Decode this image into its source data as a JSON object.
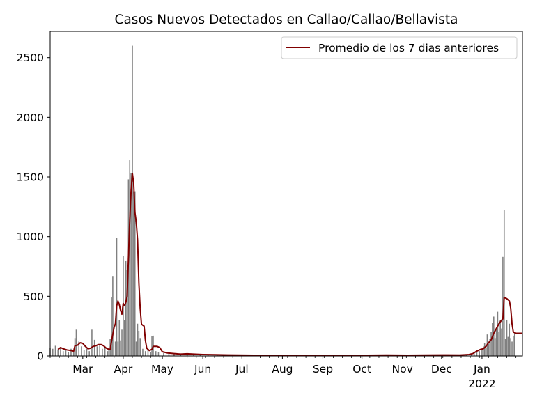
{
  "chart_data": {
    "type": "bar",
    "title": "Casos Nuevos Detectados en Callao/Callao/Bellavista",
    "xlabel": "",
    "ylabel": "",
    "ylim": [
      0,
      2720
    ],
    "yticks": [
      0,
      500,
      1000,
      1500,
      2000,
      2500
    ],
    "x_start": "2021-02-04",
    "x_end": "2022-02-01",
    "xtick_labels": [
      {
        "date": "2021-03-01",
        "label": "Mar"
      },
      {
        "date": "2021-04-01",
        "label": "Apr"
      },
      {
        "date": "2021-05-01",
        "label": "May"
      },
      {
        "date": "2021-06-01",
        "label": "Jun"
      },
      {
        "date": "2021-07-01",
        "label": "Jul"
      },
      {
        "date": "2021-08-01",
        "label": "Aug"
      },
      {
        "date": "2021-09-01",
        "label": "Sep"
      },
      {
        "date": "2021-10-01",
        "label": "Oct"
      },
      {
        "date": "2021-11-01",
        "label": "Nov"
      },
      {
        "date": "2021-12-01",
        "label": "Dec"
      },
      {
        "date": "2022-01-01",
        "label": "Jan",
        "sublabel": "2022"
      }
    ],
    "bar_color": "#808080",
    "line_color": "#800000",
    "legend": {
      "position": "upper-right",
      "label": "Promedio de los 7 dias anteriores"
    },
    "bars": [
      [
        "2021-02-04",
        70
      ],
      [
        "2021-02-06",
        60
      ],
      [
        "2021-02-08",
        85
      ],
      [
        "2021-02-10",
        55
      ],
      [
        "2021-02-12",
        70
      ],
      [
        "2021-02-14",
        40
      ],
      [
        "2021-02-16",
        50
      ],
      [
        "2021-02-18",
        30
      ],
      [
        "2021-02-20",
        60
      ],
      [
        "2021-02-22",
        50
      ],
      [
        "2021-02-23",
        150
      ],
      [
        "2021-02-24",
        220
      ],
      [
        "2021-02-26",
        120
      ],
      [
        "2021-02-28",
        80
      ],
      [
        "2021-03-02",
        50
      ],
      [
        "2021-03-04",
        60
      ],
      [
        "2021-03-06",
        40
      ],
      [
        "2021-03-08",
        220
      ],
      [
        "2021-03-10",
        135
      ],
      [
        "2021-03-12",
        80
      ],
      [
        "2021-03-14",
        100
      ],
      [
        "2021-03-16",
        60
      ],
      [
        "2021-03-18",
        70
      ],
      [
        "2021-03-20",
        40
      ],
      [
        "2021-03-21",
        60
      ],
      [
        "2021-03-22",
        140
      ],
      [
        "2021-03-23",
        490
      ],
      [
        "2021-03-24",
        670
      ],
      [
        "2021-03-26",
        120
      ],
      [
        "2021-03-27",
        990
      ],
      [
        "2021-03-28",
        120
      ],
      [
        "2021-03-29",
        300
      ],
      [
        "2021-03-30",
        130
      ],
      [
        "2021-03-31",
        220
      ],
      [
        "2021-04-01",
        840
      ],
      [
        "2021-04-02",
        300
      ],
      [
        "2021-04-03",
        800
      ],
      [
        "2021-04-04",
        720
      ],
      [
        "2021-04-05",
        1480
      ],
      [
        "2021-04-06",
        1640
      ],
      [
        "2021-04-07",
        1530
      ],
      [
        "2021-04-08",
        2600
      ],
      [
        "2021-04-09",
        1380
      ],
      [
        "2021-04-10",
        1380
      ],
      [
        "2021-04-11",
        120
      ],
      [
        "2021-04-12",
        270
      ],
      [
        "2021-04-13",
        210
      ],
      [
        "2021-04-14",
        150
      ],
      [
        "2021-04-16",
        60
      ],
      [
        "2021-04-18",
        40
      ],
      [
        "2021-04-20",
        50
      ],
      [
        "2021-04-22",
        35
      ],
      [
        "2021-04-23",
        165
      ],
      [
        "2021-04-24",
        170
      ],
      [
        "2021-04-26",
        40
      ],
      [
        "2021-04-28",
        30
      ],
      [
        "2021-05-02",
        25
      ],
      [
        "2021-05-06",
        20
      ],
      [
        "2021-05-10",
        15
      ],
      [
        "2021-05-15",
        18
      ],
      [
        "2021-05-20",
        12
      ],
      [
        "2021-05-25",
        20
      ],
      [
        "2021-05-30",
        15
      ],
      [
        "2021-06-05",
        10
      ],
      [
        "2021-06-12",
        8
      ],
      [
        "2021-06-20",
        8
      ],
      [
        "2021-07-01",
        6
      ],
      [
        "2021-07-15",
        6
      ],
      [
        "2021-08-01",
        5
      ],
      [
        "2021-08-15",
        5
      ],
      [
        "2021-09-01",
        5
      ],
      [
        "2021-09-20",
        5
      ],
      [
        "2021-10-05",
        6
      ],
      [
        "2021-10-20",
        6
      ],
      [
        "2021-11-01",
        5
      ],
      [
        "2021-11-15",
        8
      ],
      [
        "2021-11-25",
        5
      ],
      [
        "2021-12-06",
        12
      ],
      [
        "2021-12-15",
        8
      ],
      [
        "2021-12-20",
        10
      ],
      [
        "2021-12-24",
        15
      ],
      [
        "2021-12-26",
        30
      ],
      [
        "2021-12-28",
        45
      ],
      [
        "2021-12-30",
        40
      ],
      [
        "2022-01-01",
        60
      ],
      [
        "2022-01-02",
        80
      ],
      [
        "2022-01-03",
        110
      ],
      [
        "2022-01-04",
        70
      ],
      [
        "2022-01-05",
        180
      ],
      [
        "2022-01-06",
        100
      ],
      [
        "2022-01-07",
        140
      ],
      [
        "2022-01-08",
        200
      ],
      [
        "2022-01-09",
        280
      ],
      [
        "2022-01-10",
        330
      ],
      [
        "2022-01-11",
        150
      ],
      [
        "2022-01-12",
        220
      ],
      [
        "2022-01-13",
        370
      ],
      [
        "2022-01-14",
        200
      ],
      [
        "2022-01-15",
        300
      ],
      [
        "2022-01-16",
        230
      ],
      [
        "2022-01-17",
        830
      ],
      [
        "2022-01-18",
        1220
      ],
      [
        "2022-01-19",
        140
      ],
      [
        "2022-01-20",
        300
      ],
      [
        "2022-01-21",
        160
      ],
      [
        "2022-01-22",
        270
      ],
      [
        "2022-01-23",
        150
      ],
      [
        "2022-01-24",
        120
      ],
      [
        "2022-01-25",
        170
      ],
      [
        "2022-01-26",
        200
      ]
    ],
    "series": [
      {
        "name": "Promedio de los 7 dias anteriores",
        "points": [
          [
            "2021-02-10",
            55
          ],
          [
            "2021-02-12",
            70
          ],
          [
            "2021-02-14",
            60
          ],
          [
            "2021-02-17",
            50
          ],
          [
            "2021-02-20",
            45
          ],
          [
            "2021-02-22",
            40
          ],
          [
            "2021-02-23",
            85
          ],
          [
            "2021-02-25",
            90
          ],
          [
            "2021-02-27",
            110
          ],
          [
            "2021-03-01",
            105
          ],
          [
            "2021-03-03",
            80
          ],
          [
            "2021-03-05",
            60
          ],
          [
            "2021-03-07",
            65
          ],
          [
            "2021-03-09",
            80
          ],
          [
            "2021-03-11",
            85
          ],
          [
            "2021-03-13",
            95
          ],
          [
            "2021-03-15",
            95
          ],
          [
            "2021-03-17",
            85
          ],
          [
            "2021-03-19",
            65
          ],
          [
            "2021-03-21",
            55
          ],
          [
            "2021-03-22",
            55
          ],
          [
            "2021-03-23",
            120
          ],
          [
            "2021-03-25",
            240
          ],
          [
            "2021-03-26",
            270
          ],
          [
            "2021-03-27",
            420
          ],
          [
            "2021-03-28",
            460
          ],
          [
            "2021-03-29",
            430
          ],
          [
            "2021-03-30",
            380
          ],
          [
            "2021-03-31",
            350
          ],
          [
            "2021-04-01",
            440
          ],
          [
            "2021-04-02",
            420
          ],
          [
            "2021-04-03",
            450
          ],
          [
            "2021-04-04",
            500
          ],
          [
            "2021-04-05",
            820
          ],
          [
            "2021-04-06",
            1140
          ],
          [
            "2021-04-07",
            1380
          ],
          [
            "2021-04-08",
            1530
          ],
          [
            "2021-04-09",
            1450
          ],
          [
            "2021-04-10",
            1200
          ],
          [
            "2021-04-11",
            1120
          ],
          [
            "2021-04-12",
            970
          ],
          [
            "2021-04-13",
            610
          ],
          [
            "2021-04-14",
            400
          ],
          [
            "2021-04-15",
            265
          ],
          [
            "2021-04-17",
            250
          ],
          [
            "2021-04-18",
            130
          ],
          [
            "2021-04-19",
            65
          ],
          [
            "2021-04-21",
            45
          ],
          [
            "2021-04-23",
            55
          ],
          [
            "2021-04-24",
            80
          ],
          [
            "2021-04-27",
            80
          ],
          [
            "2021-04-29",
            70
          ],
          [
            "2021-05-01",
            35
          ],
          [
            "2021-05-05",
            25
          ],
          [
            "2021-05-10",
            20
          ],
          [
            "2021-05-15",
            15
          ],
          [
            "2021-05-20",
            18
          ],
          [
            "2021-05-25",
            15
          ],
          [
            "2021-06-01",
            12
          ],
          [
            "2021-06-10",
            10
          ],
          [
            "2021-06-20",
            8
          ],
          [
            "2021-07-10",
            6
          ],
          [
            "2021-08-10",
            5
          ],
          [
            "2021-09-10",
            5
          ],
          [
            "2021-10-05",
            6
          ],
          [
            "2021-10-20",
            7
          ],
          [
            "2021-11-05",
            6
          ],
          [
            "2021-11-20",
            7
          ],
          [
            "2021-12-05",
            8
          ],
          [
            "2021-12-15",
            7
          ],
          [
            "2021-12-22",
            12
          ],
          [
            "2021-12-25",
            20
          ],
          [
            "2021-12-28",
            40
          ],
          [
            "2021-12-31",
            55
          ],
          [
            "2022-01-02",
            60
          ],
          [
            "2022-01-04",
            80
          ],
          [
            "2022-01-06",
            110
          ],
          [
            "2022-01-08",
            135
          ],
          [
            "2022-01-10",
            190
          ],
          [
            "2022-01-12",
            230
          ],
          [
            "2022-01-14",
            270
          ],
          [
            "2022-01-16",
            300
          ],
          [
            "2022-01-17",
            310
          ],
          [
            "2022-01-18",
            490
          ],
          [
            "2022-01-20",
            480
          ],
          [
            "2022-01-22",
            460
          ],
          [
            "2022-01-23",
            400
          ],
          [
            "2022-01-24",
            270
          ],
          [
            "2022-01-25",
            200
          ],
          [
            "2022-01-27",
            190
          ],
          [
            "2022-02-01",
            190
          ]
        ]
      }
    ]
  }
}
